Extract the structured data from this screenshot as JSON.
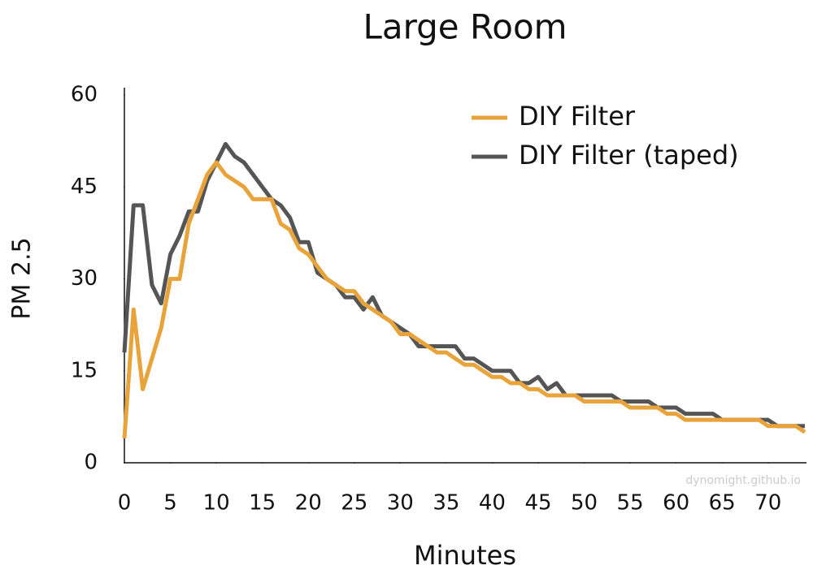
{
  "chart_data": {
    "type": "line",
    "title": "Large Room",
    "x_label": "Minutes",
    "y_label": "PM 2.5",
    "watermark": "dynomight.github.io",
    "x": [
      0,
      1,
      2,
      3,
      4,
      5,
      6,
      7,
      8,
      9,
      10,
      11,
      12,
      13,
      14,
      15,
      16,
      17,
      18,
      19,
      20,
      21,
      22,
      23,
      24,
      25,
      26,
      27,
      28,
      29,
      30,
      31,
      32,
      33,
      34,
      35,
      36,
      37,
      38,
      39,
      40,
      41,
      42,
      43,
      44,
      45,
      46,
      47,
      48,
      49,
      50,
      51,
      52,
      53,
      54,
      55,
      56,
      57,
      58,
      59,
      60,
      61,
      62,
      63,
      64,
      65,
      66,
      67,
      68,
      69,
      70,
      71,
      72,
      73,
      74
    ],
    "series": [
      {
        "name": "DIY Filter (taped)",
        "color": "#555555",
        "values": [
          18,
          42,
          42,
          29,
          26,
          34,
          37,
          41,
          41,
          46,
          49,
          52,
          50,
          49,
          47,
          45,
          43,
          42,
          40,
          36,
          36,
          31,
          30,
          29,
          27,
          27,
          25,
          27,
          24,
          23,
          22,
          21,
          19,
          19,
          19,
          19,
          19,
          17,
          17,
          16,
          15,
          15,
          15,
          13,
          13,
          14,
          12,
          13,
          11,
          11,
          11,
          11,
          11,
          11,
          10,
          10,
          10,
          10,
          9,
          9,
          9,
          8,
          8,
          8,
          8,
          7,
          7,
          7,
          7,
          7,
          7,
          6,
          6,
          6,
          6
        ]
      },
      {
        "name": "DIY Filter",
        "color": "#e8a33a",
        "values": [
          4,
          25,
          12,
          17,
          22,
          30,
          30,
          39,
          43,
          47,
          49,
          47,
          46,
          45,
          43,
          43,
          43,
          39,
          38,
          35,
          34,
          32,
          30,
          29,
          28,
          28,
          26,
          25,
          24,
          23,
          21,
          21,
          20,
          19,
          18,
          18,
          17,
          16,
          16,
          15,
          14,
          14,
          13,
          13,
          12,
          12,
          11,
          11,
          11,
          11,
          10,
          10,
          10,
          10,
          10,
          9,
          9,
          9,
          9,
          8,
          8,
          7,
          7,
          7,
          7,
          7,
          7,
          7,
          7,
          7,
          6,
          6,
          6,
          6,
          5
        ]
      }
    ],
    "legend_order": [
      1,
      0
    ],
    "xlim": [
      0,
      74
    ],
    "xticks": [
      0,
      5,
      10,
      15,
      20,
      25,
      30,
      35,
      40,
      45,
      50,
      55,
      60,
      65,
      70
    ],
    "ylim": [
      0,
      60
    ],
    "yticks": [
      0,
      15,
      30,
      45,
      60
    ],
    "legend": "upper right"
  }
}
